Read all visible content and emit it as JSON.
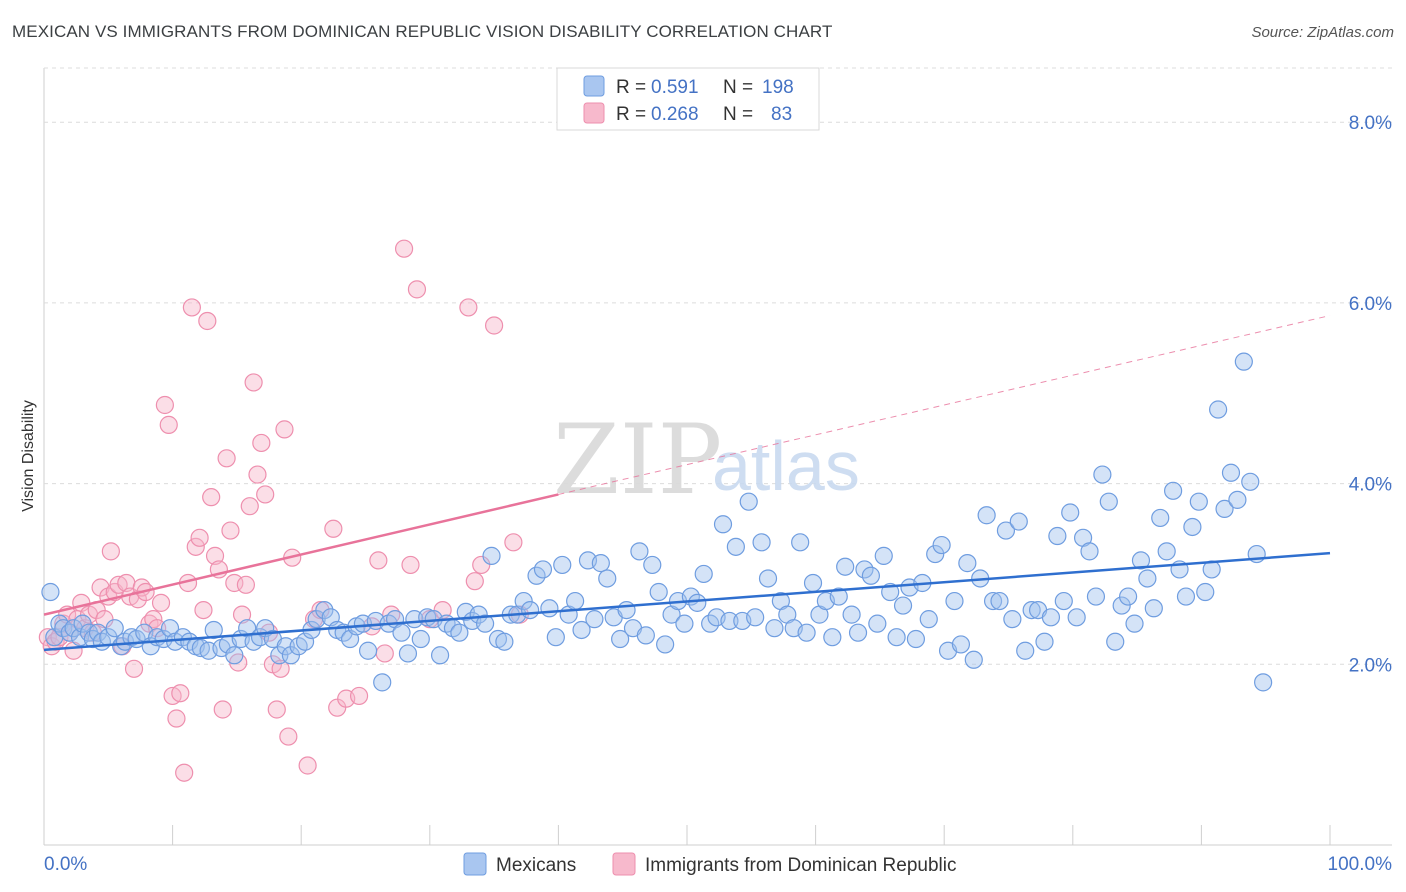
{
  "header": {
    "title": "MEXICAN VS IMMIGRANTS FROM DOMINICAN REPUBLIC VISION DISABILITY CORRELATION CHART",
    "source": "Source: ZipAtlas.com"
  },
  "watermark": {
    "zip": "ZIP",
    "atlas": "atlas"
  },
  "legend": {
    "r_label": "R =",
    "n_label": "N =",
    "entries": [
      {
        "r": "0.591",
        "n": "198",
        "color": "#a9c6f0",
        "stroke": "#6f9de0"
      },
      {
        "r": "0.268",
        "n": "83",
        "color": "#f7b9cc",
        "stroke": "#ee8fae"
      }
    ]
  },
  "bottom_legend": {
    "mexicans": "Mexicans",
    "dominican": "Immigrants from Dominican Republic"
  },
  "colors": {
    "blue": "#4472c4",
    "blue_line": "#2f6fcf",
    "pink_line": "#e8739a",
    "blue_fill": "rgba(160,192,238,0.45)",
    "blue_stroke": "#6f9de0",
    "pink_fill": "rgba(247,182,202,0.45)",
    "pink_stroke": "#ee8fae"
  },
  "chart_data": {
    "type": "scatter",
    "title": "MEXICAN VS IMMIGRANTS FROM DOMINICAN REPUBLIC VISION DISABILITY CORRELATION CHART",
    "xlabel": "",
    "ylabel": "Vision Disability",
    "xlim": [
      0,
      100
    ],
    "ylim": [
      0,
      8.6
    ],
    "x_tick_labels": [
      "0.0%",
      "100.0%"
    ],
    "y_ticks": [
      2,
      4,
      6,
      8
    ],
    "y_tick_labels": [
      "2.0%",
      "4.0%",
      "6.0%",
      "8.0%"
    ],
    "grid": "horizontal dashed",
    "legend_position": "top-center",
    "series": [
      {
        "name": "Mexicans",
        "r": 0.591,
        "n": 198,
        "trend": {
          "x": [
            0,
            100
          ],
          "y": [
            2.16,
            3.23
          ]
        },
        "points": [
          [
            0.5,
            2.8
          ],
          [
            0.8,
            2.3
          ],
          [
            1.2,
            2.45
          ],
          [
            1.5,
            2.4
          ],
          [
            2.0,
            2.35
          ],
          [
            2.3,
            2.4
          ],
          [
            2.8,
            2.3
          ],
          [
            3.0,
            2.45
          ],
          [
            3.5,
            2.35
          ],
          [
            3.8,
            2.28
          ],
          [
            4.2,
            2.35
          ],
          [
            4.5,
            2.25
          ],
          [
            5.0,
            2.3
          ],
          [
            5.5,
            2.4
          ],
          [
            6.0,
            2.2
          ],
          [
            6.3,
            2.25
          ],
          [
            6.8,
            2.3
          ],
          [
            7.2,
            2.28
          ],
          [
            7.8,
            2.35
          ],
          [
            8.3,
            2.2
          ],
          [
            8.8,
            2.3
          ],
          [
            9.3,
            2.28
          ],
          [
            9.8,
            2.4
          ],
          [
            10.2,
            2.25
          ],
          [
            10.8,
            2.3
          ],
          [
            11.3,
            2.25
          ],
          [
            11.8,
            2.2
          ],
          [
            12.2,
            2.18
          ],
          [
            12.8,
            2.15
          ],
          [
            13.2,
            2.38
          ],
          [
            13.8,
            2.18
          ],
          [
            14.3,
            2.22
          ],
          [
            14.8,
            2.1
          ],
          [
            15.3,
            2.28
          ],
          [
            15.8,
            2.4
          ],
          [
            16.3,
            2.25
          ],
          [
            16.8,
            2.3
          ],
          [
            17.2,
            2.4
          ],
          [
            17.8,
            2.28
          ],
          [
            18.3,
            2.1
          ],
          [
            18.8,
            2.2
          ],
          [
            19.2,
            2.1
          ],
          [
            19.8,
            2.2
          ],
          [
            20.3,
            2.25
          ],
          [
            20.8,
            2.38
          ],
          [
            21.2,
            2.5
          ],
          [
            21.8,
            2.6
          ],
          [
            22.3,
            2.52
          ],
          [
            22.8,
            2.38
          ],
          [
            23.3,
            2.35
          ],
          [
            23.8,
            2.28
          ],
          [
            24.3,
            2.42
          ],
          [
            24.8,
            2.45
          ],
          [
            25.2,
            2.15
          ],
          [
            25.8,
            2.48
          ],
          [
            26.3,
            1.8
          ],
          [
            26.8,
            2.45
          ],
          [
            27.3,
            2.5
          ],
          [
            27.8,
            2.35
          ],
          [
            28.3,
            2.12
          ],
          [
            28.8,
            2.5
          ],
          [
            29.3,
            2.28
          ],
          [
            29.8,
            2.52
          ],
          [
            30.3,
            2.5
          ],
          [
            30.8,
            2.1
          ],
          [
            31.3,
            2.45
          ],
          [
            31.8,
            2.4
          ],
          [
            32.3,
            2.35
          ],
          [
            32.8,
            2.58
          ],
          [
            33.3,
            2.48
          ],
          [
            33.8,
            2.55
          ],
          [
            34.3,
            2.45
          ],
          [
            34.8,
            3.2
          ],
          [
            35.3,
            2.28
          ],
          [
            35.8,
            2.25
          ],
          [
            36.3,
            2.55
          ],
          [
            36.8,
            2.55
          ],
          [
            37.3,
            2.7
          ],
          [
            37.8,
            2.6
          ],
          [
            38.3,
            2.98
          ],
          [
            38.8,
            3.05
          ],
          [
            39.3,
            2.62
          ],
          [
            39.8,
            2.3
          ],
          [
            40.3,
            3.1
          ],
          [
            40.8,
            2.55
          ],
          [
            41.3,
            2.7
          ],
          [
            41.8,
            2.38
          ],
          [
            42.3,
            3.15
          ],
          [
            42.8,
            2.5
          ],
          [
            43.3,
            3.12
          ],
          [
            43.8,
            2.95
          ],
          [
            44.3,
            2.52
          ],
          [
            44.8,
            2.28
          ],
          [
            45.3,
            2.6
          ],
          [
            45.8,
            2.4
          ],
          [
            46.3,
            3.25
          ],
          [
            46.8,
            2.32
          ],
          [
            47.3,
            3.1
          ],
          [
            47.8,
            2.8
          ],
          [
            48.3,
            2.22
          ],
          [
            48.8,
            2.55
          ],
          [
            49.3,
            2.7
          ],
          [
            49.8,
            2.45
          ],
          [
            50.3,
            2.75
          ],
          [
            50.8,
            2.68
          ],
          [
            51.3,
            3.0
          ],
          [
            51.8,
            2.45
          ],
          [
            52.3,
            2.52
          ],
          [
            52.8,
            3.55
          ],
          [
            53.3,
            2.48
          ],
          [
            53.8,
            3.3
          ],
          [
            54.3,
            2.48
          ],
          [
            54.8,
            3.8
          ],
          [
            55.3,
            2.52
          ],
          [
            55.8,
            3.35
          ],
          [
            56.3,
            2.95
          ],
          [
            56.8,
            2.4
          ],
          [
            57.3,
            2.7
          ],
          [
            57.8,
            2.55
          ],
          [
            58.3,
            2.4
          ],
          [
            58.8,
            3.35
          ],
          [
            59.3,
            2.35
          ],
          [
            59.8,
            2.9
          ],
          [
            60.3,
            2.55
          ],
          [
            60.8,
            2.7
          ],
          [
            61.3,
            2.3
          ],
          [
            61.8,
            2.75
          ],
          [
            62.3,
            3.08
          ],
          [
            62.8,
            2.55
          ],
          [
            63.3,
            2.35
          ],
          [
            63.8,
            3.05
          ],
          [
            64.3,
            2.98
          ],
          [
            64.8,
            2.45
          ],
          [
            65.3,
            3.2
          ],
          [
            65.8,
            2.8
          ],
          [
            66.3,
            2.3
          ],
          [
            66.8,
            2.65
          ],
          [
            67.3,
            2.85
          ],
          [
            67.8,
            2.28
          ],
          [
            68.3,
            2.9
          ],
          [
            68.8,
            2.5
          ],
          [
            69.3,
            3.22
          ],
          [
            69.8,
            3.32
          ],
          [
            70.3,
            2.15
          ],
          [
            70.8,
            2.7
          ],
          [
            71.3,
            2.22
          ],
          [
            71.8,
            3.12
          ],
          [
            72.3,
            2.05
          ],
          [
            72.8,
            2.95
          ],
          [
            73.3,
            3.65
          ],
          [
            73.8,
            2.7
          ],
          [
            74.3,
            2.7
          ],
          [
            74.8,
            3.48
          ],
          [
            75.3,
            2.5
          ],
          [
            75.8,
            3.58
          ],
          [
            76.3,
            2.15
          ],
          [
            76.8,
            2.6
          ],
          [
            77.3,
            2.6
          ],
          [
            77.8,
            2.25
          ],
          [
            78.3,
            2.52
          ],
          [
            78.8,
            3.42
          ],
          [
            79.3,
            2.7
          ],
          [
            79.8,
            3.68
          ],
          [
            80.3,
            2.52
          ],
          [
            80.8,
            3.4
          ],
          [
            81.3,
            3.25
          ],
          [
            81.8,
            2.75
          ],
          [
            82.3,
            4.1
          ],
          [
            82.8,
            3.8
          ],
          [
            83.3,
            2.25
          ],
          [
            83.8,
            2.65
          ],
          [
            84.3,
            2.75
          ],
          [
            84.8,
            2.45
          ],
          [
            85.3,
            3.15
          ],
          [
            85.8,
            2.95
          ],
          [
            86.3,
            2.62
          ],
          [
            86.8,
            3.62
          ],
          [
            87.3,
            3.25
          ],
          [
            87.8,
            3.92
          ],
          [
            88.3,
            3.05
          ],
          [
            88.8,
            2.75
          ],
          [
            89.3,
            3.52
          ],
          [
            89.8,
            3.8
          ],
          [
            90.3,
            2.8
          ],
          [
            90.8,
            3.05
          ],
          [
            91.3,
            4.82
          ],
          [
            91.8,
            3.72
          ],
          [
            92.3,
            4.12
          ],
          [
            92.8,
            3.82
          ],
          [
            93.3,
            5.35
          ],
          [
            93.8,
            4.02
          ],
          [
            94.3,
            3.22
          ],
          [
            94.8,
            1.8
          ]
        ]
      },
      {
        "name": "Immigrants from Dominican Republic",
        "r": 0.268,
        "n": 83,
        "trend": {
          "x": [
            0,
            40
          ],
          "y": [
            2.55,
            3.88
          ]
        },
        "trend_extension": {
          "x": [
            40,
            100
          ],
          "y": [
            3.88,
            5.86
          ]
        },
        "points": [
          [
            0.3,
            2.3
          ],
          [
            0.6,
            2.2
          ],
          [
            0.9,
            2.25
          ],
          [
            1.2,
            2.3
          ],
          [
            1.5,
            2.45
          ],
          [
            1.8,
            2.55
          ],
          [
            2.0,
            2.35
          ],
          [
            2.3,
            2.15
          ],
          [
            2.6,
            2.5
          ],
          [
            2.9,
            2.68
          ],
          [
            3.2,
            2.4
          ],
          [
            3.5,
            2.55
          ],
          [
            3.8,
            2.35
          ],
          [
            4.1,
            2.6
          ],
          [
            4.4,
            2.85
          ],
          [
            4.7,
            2.5
          ],
          [
            5.0,
            2.75
          ],
          [
            5.2,
            3.25
          ],
          [
            5.5,
            2.8
          ],
          [
            5.8,
            2.88
          ],
          [
            6.1,
            2.2
          ],
          [
            6.4,
            2.9
          ],
          [
            6.7,
            2.75
          ],
          [
            7.0,
            1.95
          ],
          [
            7.3,
            2.72
          ],
          [
            7.6,
            2.85
          ],
          [
            7.9,
            2.8
          ],
          [
            8.2,
            2.45
          ],
          [
            8.5,
            2.5
          ],
          [
            8.8,
            2.4
          ],
          [
            9.1,
            2.68
          ],
          [
            9.4,
            4.87
          ],
          [
            9.7,
            4.65
          ],
          [
            10.0,
            1.65
          ],
          [
            10.3,
            1.4
          ],
          [
            10.6,
            1.68
          ],
          [
            10.9,
            0.8
          ],
          [
            11.2,
            2.9
          ],
          [
            11.5,
            5.95
          ],
          [
            11.8,
            3.3
          ],
          [
            12.1,
            3.4
          ],
          [
            12.4,
            2.6
          ],
          [
            12.7,
            5.8
          ],
          [
            13.0,
            3.85
          ],
          [
            13.3,
            3.2
          ],
          [
            13.6,
            3.05
          ],
          [
            13.9,
            1.5
          ],
          [
            14.2,
            4.28
          ],
          [
            14.5,
            3.48
          ],
          [
            14.8,
            2.9
          ],
          [
            15.1,
            2.02
          ],
          [
            15.4,
            2.55
          ],
          [
            15.7,
            2.88
          ],
          [
            16.0,
            3.75
          ],
          [
            16.3,
            5.12
          ],
          [
            16.6,
            4.1
          ],
          [
            16.9,
            4.45
          ],
          [
            17.2,
            3.88
          ],
          [
            17.5,
            2.35
          ],
          [
            17.8,
            2.0
          ],
          [
            18.1,
            1.5
          ],
          [
            18.4,
            1.95
          ],
          [
            18.7,
            4.6
          ],
          [
            19.0,
            1.2
          ],
          [
            19.3,
            3.18
          ],
          [
            20.5,
            0.88
          ],
          [
            21.0,
            2.5
          ],
          [
            21.5,
            2.6
          ],
          [
            22.5,
            3.5
          ],
          [
            22.8,
            1.52
          ],
          [
            23.5,
            1.62
          ],
          [
            24.5,
            1.65
          ],
          [
            25.5,
            2.42
          ],
          [
            26.0,
            3.15
          ],
          [
            26.5,
            2.12
          ],
          [
            27.0,
            2.55
          ],
          [
            28.0,
            6.6
          ],
          [
            28.5,
            3.1
          ],
          [
            29.0,
            6.15
          ],
          [
            30.0,
            2.5
          ],
          [
            31.0,
            2.6
          ],
          [
            33.0,
            5.95
          ],
          [
            33.5,
            2.92
          ],
          [
            34.0,
            3.1
          ],
          [
            35.0,
            5.75
          ],
          [
            36.5,
            3.35
          ],
          [
            37.0,
            2.55
          ]
        ]
      }
    ]
  }
}
